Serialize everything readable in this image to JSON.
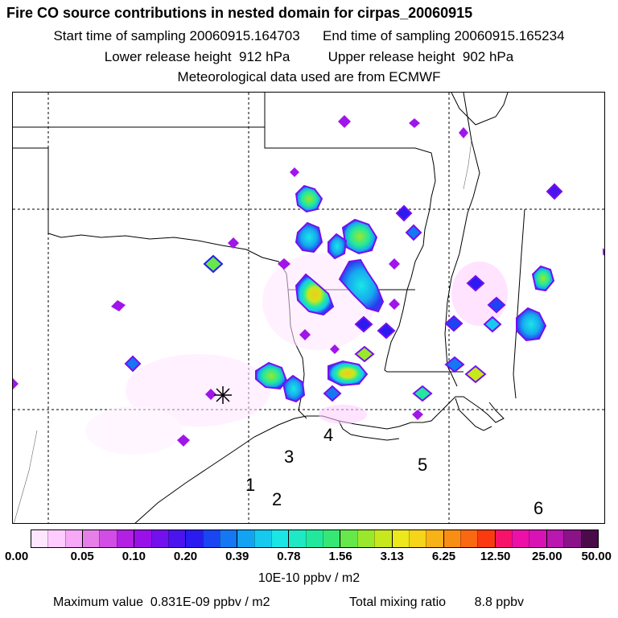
{
  "header": {
    "title": "Fire CO source contributions in nested domain for cirpas_20060915",
    "line1": "Start time of sampling 20060915.164703      End time of sampling 20060915.165234",
    "line2": "Lower release height  912 hPa          Upper release height  902 hPa",
    "line3": "Meteorological data used are from ECMWF"
  },
  "map": {
    "labels": [
      "1",
      "2",
      "3",
      "4",
      "5",
      "6"
    ]
  },
  "colorbar": {
    "ticks": [
      "0.00",
      "0.05",
      "0.10",
      "0.20",
      "0.39",
      "0.78",
      "1.56",
      "3.13",
      "6.25",
      "12.50",
      "25.00",
      "50.00"
    ],
    "colors": [
      "#ffe6ff",
      "#ffccff",
      "#f7a8f7",
      "#e77fe9",
      "#d24de6",
      "#b320e3",
      "#9a10e9",
      "#7410ee",
      "#4b14ef",
      "#2a1bf0",
      "#1a45f2",
      "#1577f3",
      "#12a3f3",
      "#16c9ee",
      "#1ae6e6",
      "#1fe8c5",
      "#22e89e",
      "#35e875",
      "#66e84a",
      "#9ae82b",
      "#c8e81e",
      "#ece81c",
      "#f5d419",
      "#f7b216",
      "#f98e14",
      "#fa6812",
      "#fb3a10",
      "#f7136a",
      "#ec10a8",
      "#d812b5",
      "#ba16b0",
      "#8a1487",
      "#4b0b4b"
    ],
    "unit": "10E-10 ppbv / m2"
  },
  "footer": {
    "max_value": "Maximum value  0.831E-09 ppbv / m2",
    "total_mixing": "Total mixing ratio        8.8 ppbv"
  }
}
